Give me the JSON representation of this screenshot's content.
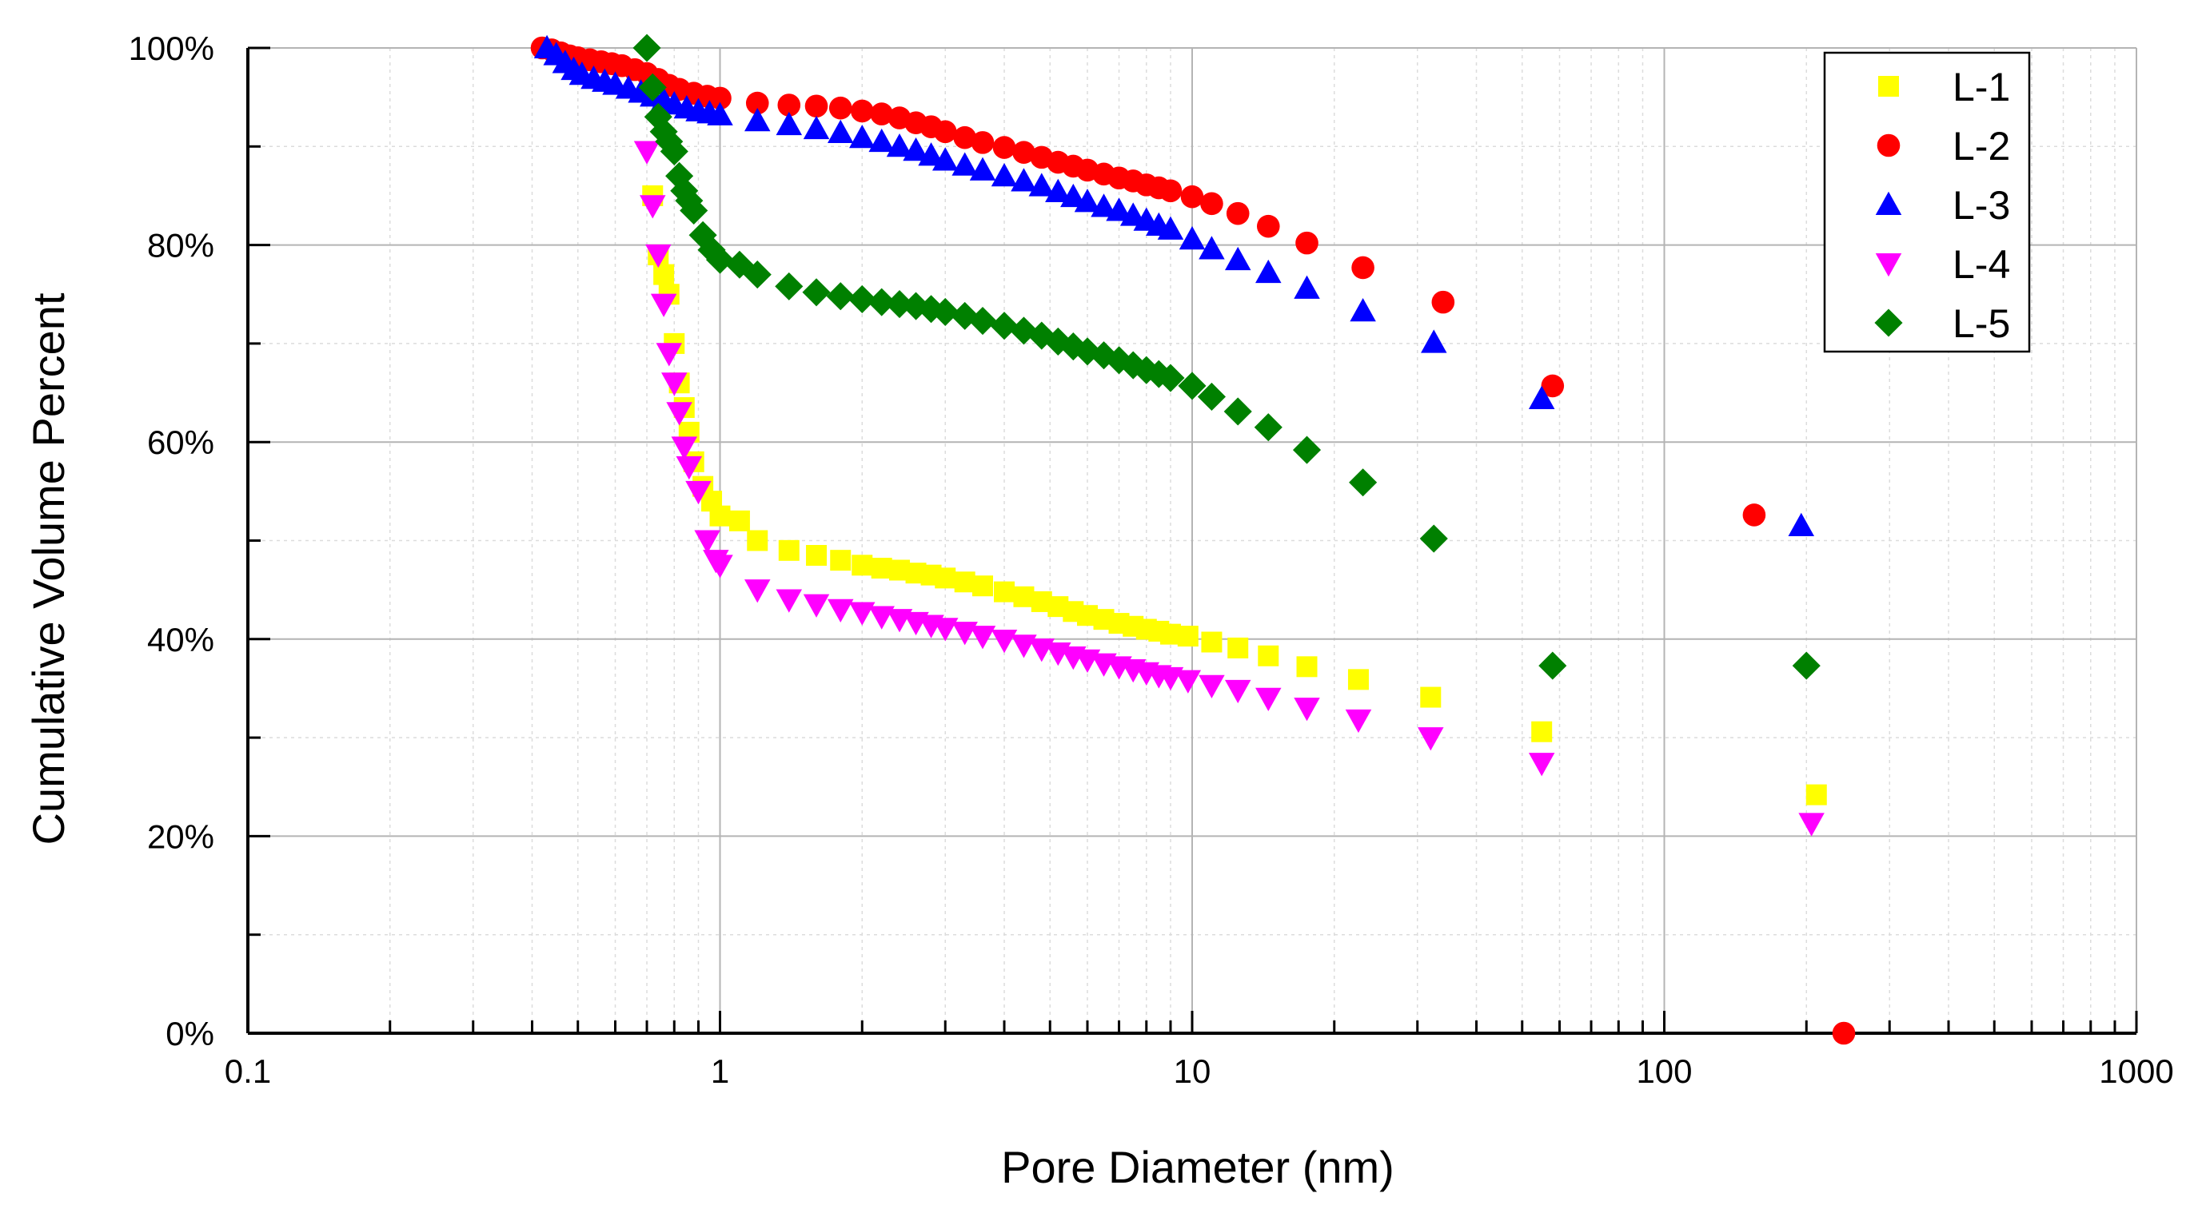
{
  "chart_data": {
    "type": "scatter",
    "title": "",
    "xlabel": "Pore Diameter (nm)",
    "ylabel": "Cumulative Volume Percent",
    "xscale": "log",
    "xlim": [
      0.1,
      1000
    ],
    "ylim": [
      0,
      100
    ],
    "x_ticks": [
      {
        "value": 0.1,
        "label": "0.1"
      },
      {
        "value": 1,
        "label": "1"
      },
      {
        "value": 10,
        "label": "10"
      },
      {
        "value": 100,
        "label": "100"
      },
      {
        "value": 1000,
        "label": "1000"
      }
    ],
    "y_ticks": [
      {
        "value": 0,
        "label": "0%"
      },
      {
        "value": 20,
        "label": "20%"
      },
      {
        "value": 40,
        "label": "40%"
      },
      {
        "value": 60,
        "label": "60%"
      },
      {
        "value": 80,
        "label": "80%"
      },
      {
        "value": 100,
        "label": "100%"
      }
    ],
    "grid": true,
    "legend_position": "top-right",
    "series": [
      {
        "name": "L-1",
        "marker": "square",
        "color": "#FFFF00",
        "x": [
          0.72,
          0.74,
          0.76,
          0.78,
          0.8,
          0.82,
          0.84,
          0.86,
          0.88,
          0.92,
          0.96,
          1.0,
          1.1,
          1.2,
          1.4,
          1.6,
          1.8,
          2.0,
          2.2,
          2.4,
          2.6,
          2.8,
          3.0,
          3.3,
          3.6,
          4.0,
          4.4,
          4.8,
          5.2,
          5.6,
          6.0,
          6.5,
          7.0,
          7.5,
          8.0,
          8.5,
          9.0,
          9.8,
          11.0,
          12.5,
          14.5,
          17.5,
          22.5,
          32.0,
          55.0,
          210.0
        ],
        "y": [
          85,
          79,
          77,
          75,
          70,
          66,
          63.5,
          61,
          58,
          55.5,
          54,
          52.5,
          52,
          50,
          49,
          48.5,
          48,
          47.5,
          47.2,
          47,
          46.7,
          46.5,
          46.2,
          45.8,
          45.4,
          44.8,
          44.3,
          43.8,
          43.3,
          42.8,
          42.4,
          42,
          41.6,
          41.3,
          41,
          40.8,
          40.5,
          40.3,
          39.7,
          39.1,
          38.3,
          37.2,
          35.9,
          34.1,
          30.6,
          24.2
        ]
      },
      {
        "name": "L-2",
        "marker": "circle",
        "color": "#FF0000",
        "x": [
          0.42,
          0.44,
          0.46,
          0.48,
          0.5,
          0.53,
          0.56,
          0.59,
          0.62,
          0.66,
          0.7,
          0.74,
          0.78,
          0.82,
          0.88,
          0.94,
          1.0,
          1.2,
          1.4,
          1.6,
          1.8,
          2.0,
          2.2,
          2.4,
          2.6,
          2.8,
          3.0,
          3.3,
          3.6,
          4.0,
          4.4,
          4.8,
          5.2,
          5.6,
          6.0,
          6.5,
          7.0,
          7.5,
          8.0,
          8.5,
          9.0,
          10.0,
          11.0,
          12.5,
          14.5,
          17.5,
          23.0,
          34.0,
          58.0,
          155.0,
          240.0
        ],
        "y": [
          100,
          99.8,
          99.5,
          99.2,
          99,
          98.8,
          98.6,
          98.4,
          98.2,
          97.8,
          97.4,
          96.8,
          96.2,
          95.8,
          95.4,
          95.1,
          94.9,
          94.4,
          94.2,
          94.1,
          93.9,
          93.6,
          93.3,
          92.9,
          92.4,
          92,
          91.5,
          90.9,
          90.4,
          89.9,
          89.4,
          88.9,
          88.4,
          88,
          87.6,
          87.2,
          86.8,
          86.5,
          86.1,
          85.8,
          85.5,
          84.9,
          84.2,
          83.2,
          81.9,
          80.2,
          77.7,
          74.2,
          65.7,
          52.6,
          0
        ]
      },
      {
        "name": "L-3",
        "marker": "triangle-up",
        "color": "#0000FF",
        "x": [
          0.43,
          0.45,
          0.47,
          0.49,
          0.51,
          0.54,
          0.57,
          0.6,
          0.64,
          0.68,
          0.72,
          0.76,
          0.8,
          0.85,
          0.9,
          0.95,
          1.0,
          1.2,
          1.4,
          1.6,
          1.8,
          2.0,
          2.2,
          2.4,
          2.6,
          2.8,
          3.0,
          3.3,
          3.6,
          4.0,
          4.4,
          4.8,
          5.2,
          5.6,
          6.0,
          6.5,
          7.0,
          7.5,
          8.0,
          8.5,
          9.0,
          10.0,
          11.0,
          12.5,
          14.5,
          17.5,
          23.0,
          32.5,
          55.0,
          195.0
        ],
        "y": [
          100,
          99.3,
          98.5,
          97.8,
          97.3,
          96.9,
          96.6,
          96.3,
          95.9,
          95.5,
          95.1,
          94.7,
          94.3,
          93.9,
          93.6,
          93.4,
          93.2,
          92.6,
          92.2,
          91.8,
          91.4,
          90.9,
          90.5,
          90,
          89.6,
          89.1,
          88.6,
          88.1,
          87.6,
          87,
          86.5,
          86,
          85.4,
          84.9,
          84.4,
          83.9,
          83.5,
          83,
          82.5,
          82,
          81.6,
          80.6,
          79.6,
          78.5,
          77.2,
          75.6,
          73.3,
          70.1,
          64.4,
          51.5
        ]
      },
      {
        "name": "L-4",
        "marker": "triangle-down",
        "color": "#FF00FF",
        "x": [
          0.7,
          0.72,
          0.74,
          0.76,
          0.78,
          0.8,
          0.82,
          0.84,
          0.86,
          0.9,
          0.94,
          0.98,
          1.0,
          1.2,
          1.4,
          1.6,
          1.8,
          2.0,
          2.2,
          2.4,
          2.6,
          2.8,
          3.0,
          3.3,
          3.6,
          4.0,
          4.4,
          4.8,
          5.2,
          5.6,
          6.0,
          6.5,
          7.0,
          7.5,
          8.0,
          8.5,
          9.0,
          9.8,
          11.0,
          12.5,
          14.5,
          17.5,
          22.5,
          32.0,
          55.0,
          205.0
        ],
        "y": [
          89.5,
          84,
          79,
          74,
          69,
          66,
          63,
          59.5,
          57.5,
          55,
          50,
          48,
          47.5,
          45,
          44,
          43.5,
          43,
          42.7,
          42.3,
          42,
          41.7,
          41.4,
          41.1,
          40.7,
          40.3,
          39.9,
          39.4,
          39,
          38.6,
          38.2,
          37.9,
          37.5,
          37.2,
          36.9,
          36.6,
          36.3,
          36.1,
          35.8,
          35.3,
          34.8,
          34,
          33,
          31.8,
          30,
          27.4,
          21.3
        ]
      },
      {
        "name": "L-5",
        "marker": "diamond",
        "color": "#008000",
        "x": [
          0.7,
          0.72,
          0.74,
          0.76,
          0.78,
          0.8,
          0.82,
          0.84,
          0.86,
          0.88,
          0.92,
          0.96,
          1.0,
          1.1,
          1.2,
          1.4,
          1.6,
          1.8,
          2.0,
          2.2,
          2.4,
          2.6,
          2.8,
          3.0,
          3.3,
          3.6,
          4.0,
          4.4,
          4.8,
          5.2,
          5.6,
          6.0,
          6.5,
          7.0,
          7.5,
          8.0,
          8.5,
          9.0,
          10.0,
          11.0,
          12.5,
          14.5,
          17.5,
          23.0,
          32.5,
          58.0,
          200.0
        ],
        "y": [
          100,
          96,
          93,
          91.5,
          90.5,
          89.5,
          87,
          85.5,
          84.5,
          83.5,
          81,
          79.5,
          78.5,
          78,
          77,
          75.8,
          75.2,
          74.8,
          74.5,
          74.2,
          74,
          73.8,
          73.5,
          73.2,
          72.8,
          72.3,
          71.8,
          71.3,
          70.8,
          70.2,
          69.7,
          69.2,
          68.8,
          68.3,
          67.8,
          67.3,
          66.9,
          66.5,
          65.7,
          64.6,
          63.1,
          61.5,
          59.2,
          55.9,
          50.2,
          37.3,
          37.3
        ]
      }
    ]
  }
}
